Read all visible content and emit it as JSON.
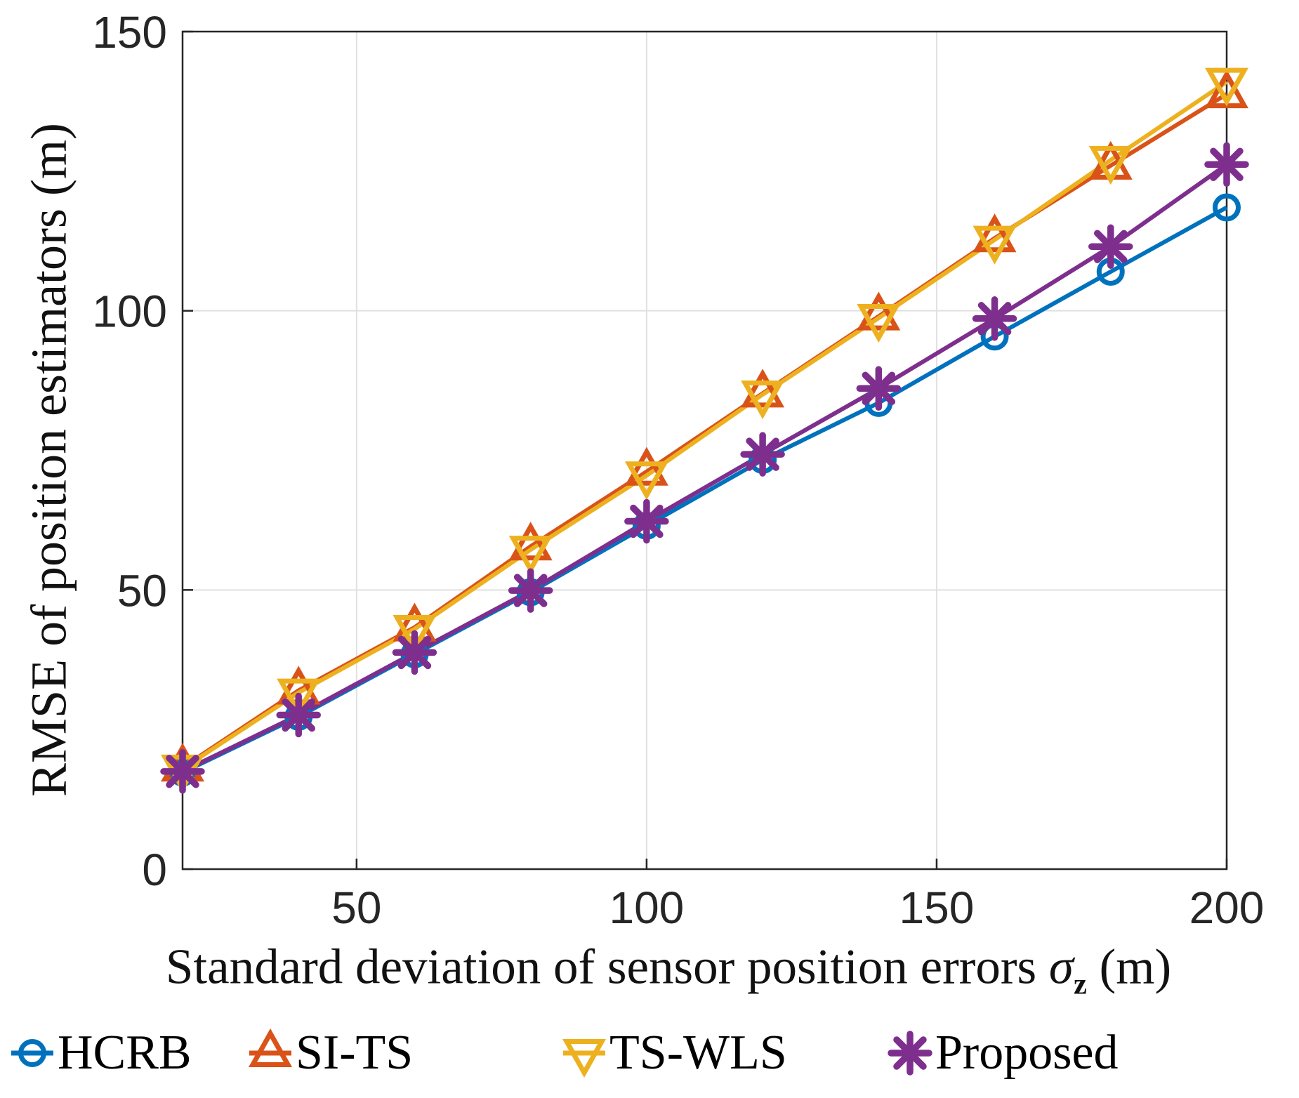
{
  "figure": {
    "xlabel_parts": {
      "prefix": "Standard deviation of sensor position errors ",
      "sigma": "σ",
      "subscript": "z",
      "suffix": " (m)"
    }
  },
  "chart_data": {
    "type": "line",
    "title": "",
    "xlabel": "Standard deviation of sensor position errors σz (m)",
    "ylabel": "RMSE of position estimators (m)",
    "x": [
      20,
      40,
      60,
      80,
      100,
      120,
      140,
      160,
      180,
      200
    ],
    "xlim": [
      20,
      200
    ],
    "ylim": [
      0,
      150
    ],
    "x_ticks": [
      50,
      100,
      150,
      200
    ],
    "y_ticks": [
      0,
      50,
      100,
      150
    ],
    "grid": true,
    "legend_position": "below-horizontal",
    "axis_color": "#262626",
    "grid_color": "#e0e0e0",
    "tick_label_color": "#262626",
    "series": [
      {
        "name": "HCRB",
        "color": "#0072BD",
        "marker": "circle",
        "values": [
          17.3,
          27.3,
          38.5,
          49.6,
          61.5,
          73.3,
          83.5,
          95.4,
          107.0,
          118.5
        ]
      },
      {
        "name": "SI-TS",
        "color": "#D95319",
        "marker": "triangle-up",
        "values": [
          18.2,
          32.0,
          43.3,
          57.8,
          71.2,
          85.2,
          99.0,
          113.0,
          126.0,
          138.8
        ]
      },
      {
        "name": "TS-WLS",
        "color": "#EDB120",
        "marker": "triangle-down",
        "values": [
          18.0,
          31.6,
          43.0,
          57.2,
          70.5,
          85.0,
          98.7,
          112.7,
          127.0,
          141.0
        ]
      },
      {
        "name": "Proposed",
        "color": "#7E2F8E",
        "marker": "asterisk",
        "values": [
          17.5,
          27.6,
          38.8,
          49.9,
          62.3,
          74.3,
          86.1,
          98.6,
          111.5,
          126.2
        ]
      }
    ]
  }
}
